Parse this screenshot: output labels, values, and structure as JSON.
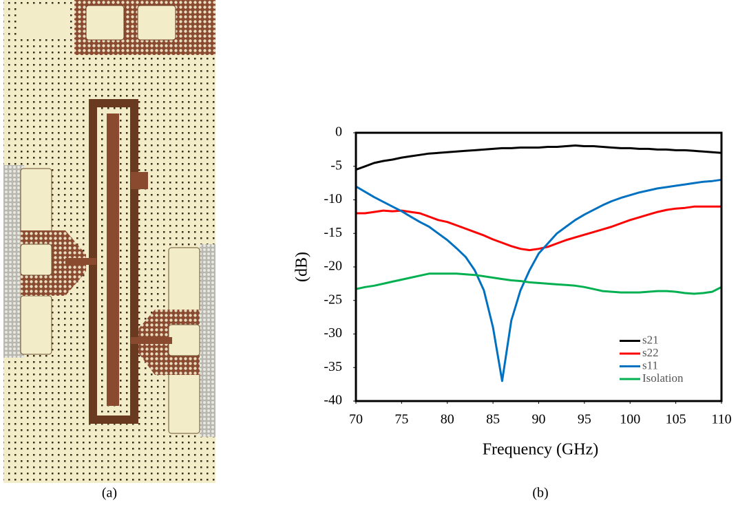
{
  "chart_data": {
    "type": "line",
    "xlabel": "Frequency (GHz)",
    "ylabel": "(dB)",
    "x": [
      70,
      71,
      72,
      73,
      74,
      75,
      76,
      77,
      78,
      79,
      80,
      81,
      82,
      83,
      84,
      85,
      86,
      87,
      88,
      89,
      90,
      91,
      92,
      93,
      94,
      95,
      96,
      97,
      98,
      99,
      100,
      101,
      102,
      103,
      104,
      105,
      106,
      107,
      108,
      109,
      110
    ],
    "series": [
      {
        "name": "s21",
        "color": "#000000",
        "values": [
          -5.5,
          -5,
          -4.5,
          -4.2,
          -4,
          -3.7,
          -3.5,
          -3.3,
          -3.1,
          -3,
          -2.9,
          -2.8,
          -2.7,
          -2.6,
          -2.5,
          -2.4,
          -2.3,
          -2.3,
          -2.2,
          -2.2,
          -2.2,
          -2.1,
          -2.1,
          -2,
          -1.9,
          -2,
          -2,
          -2.1,
          -2.2,
          -2.3,
          -2.3,
          -2.4,
          -2.4,
          -2.5,
          -2.5,
          -2.6,
          -2.6,
          -2.7,
          -2.8,
          -2.9,
          -3
        ]
      },
      {
        "name": "s22",
        "color": "#ff0000",
        "values": [
          -12,
          -12,
          -11.8,
          -11.6,
          -11.7,
          -11.6,
          -11.8,
          -12,
          -12.5,
          -13,
          -13.3,
          -13.8,
          -14.3,
          -14.8,
          -15.3,
          -15.9,
          -16.4,
          -16.9,
          -17.3,
          -17.5,
          -17.3,
          -17,
          -16.5,
          -16,
          -15.6,
          -15.2,
          -14.8,
          -14.4,
          -14,
          -13.5,
          -13,
          -12.6,
          -12.2,
          -11.8,
          -11.5,
          -11.3,
          -11.2,
          -11,
          -11,
          -11,
          -11
        ]
      },
      {
        "name": "s11",
        "color": "#0070c0",
        "values": [
          -8,
          -8.8,
          -9.6,
          -10.3,
          -11,
          -11.7,
          -12.5,
          -13.3,
          -14,
          -15,
          -16,
          -17.2,
          -18.5,
          -20.5,
          -23.5,
          -29,
          -37,
          -28,
          -23.5,
          -20.5,
          -18,
          -16.5,
          -15,
          -14,
          -13,
          -12.2,
          -11.5,
          -10.8,
          -10.2,
          -9.7,
          -9.3,
          -8.9,
          -8.6,
          -8.3,
          -8.1,
          -7.9,
          -7.7,
          -7.5,
          -7.3,
          -7.2,
          -7
        ]
      },
      {
        "name": "Isolation",
        "color": "#00b050",
        "values": [
          -23.3,
          -23,
          -22.8,
          -22.5,
          -22.2,
          -21.9,
          -21.6,
          -21.3,
          -21,
          -21,
          -21,
          -21,
          -21.1,
          -21.2,
          -21.4,
          -21.6,
          -21.8,
          -22,
          -22.1,
          -22.3,
          -22.4,
          -22.5,
          -22.6,
          -22.7,
          -22.8,
          -23,
          -23.3,
          -23.6,
          -23.7,
          -23.8,
          -23.8,
          -23.8,
          -23.7,
          -23.6,
          -23.6,
          -23.7,
          -23.9,
          -24,
          -23.9,
          -23.7,
          -23
        ]
      }
    ],
    "xlim": [
      70,
      110
    ],
    "xticks": [
      70,
      75,
      80,
      85,
      90,
      95,
      100,
      105,
      110
    ],
    "ylim": [
      -40,
      0
    ],
    "yticks": [
      0,
      -5,
      -10,
      -15,
      -20,
      -25,
      -30,
      -35,
      -40
    ],
    "legend": "lower right"
  },
  "captions": [
    "(a)",
    "(b)"
  ]
}
